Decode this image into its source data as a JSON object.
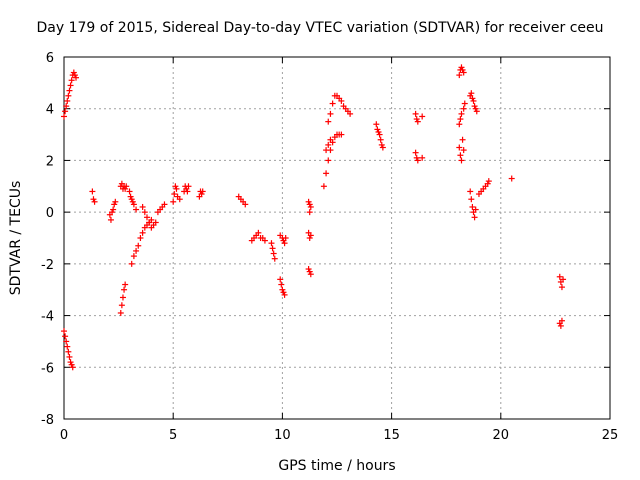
{
  "chart_data": {
    "type": "scatter",
    "title": "Day 179 of 2015, Sidereal Day-to-day VTEC variation (SDTVAR) for receiver ceeu",
    "xlabel": "GPS time / hours",
    "ylabel": "SDTVAR / TECUs",
    "xlim": [
      0,
      25
    ],
    "ylim": [
      -8,
      6
    ],
    "xticks": [
      0,
      5,
      10,
      15,
      20,
      25
    ],
    "yticks": [
      -8,
      -6,
      -4,
      -2,
      0,
      2,
      4,
      6
    ],
    "grid": true,
    "marker": "+",
    "marker_color": "#ff0000",
    "series": [
      {
        "name": "SDTVAR",
        "points": [
          [
            0.0,
            3.7
          ],
          [
            0.05,
            3.9
          ],
          [
            0.1,
            4.1
          ],
          [
            0.15,
            4.3
          ],
          [
            0.2,
            4.5
          ],
          [
            0.25,
            4.7
          ],
          [
            0.3,
            4.9
          ],
          [
            0.35,
            5.1
          ],
          [
            0.4,
            5.3
          ],
          [
            0.45,
            5.4
          ],
          [
            0.5,
            5.3
          ],
          [
            0.55,
            5.2
          ],
          [
            0.0,
            -4.6
          ],
          [
            0.05,
            -4.8
          ],
          [
            0.1,
            -5.0
          ],
          [
            0.15,
            -5.2
          ],
          [
            0.2,
            -5.4
          ],
          [
            0.25,
            -5.6
          ],
          [
            0.3,
            -5.8
          ],
          [
            0.35,
            -5.9
          ],
          [
            0.4,
            -6.0
          ],
          [
            1.3,
            0.8
          ],
          [
            1.35,
            0.5
          ],
          [
            1.4,
            0.4
          ],
          [
            2.1,
            -0.1
          ],
          [
            2.15,
            -0.3
          ],
          [
            2.2,
            0.0
          ],
          [
            2.25,
            0.1
          ],
          [
            2.3,
            0.3
          ],
          [
            2.35,
            0.4
          ],
          [
            2.6,
            1.0
          ],
          [
            2.65,
            1.1
          ],
          [
            2.7,
            0.9
          ],
          [
            2.75,
            1.0
          ],
          [
            2.8,
            0.9
          ],
          [
            2.85,
            1.0
          ],
          [
            2.6,
            -3.9
          ],
          [
            2.65,
            -3.6
          ],
          [
            2.7,
            -3.3
          ],
          [
            2.75,
            -3.0
          ],
          [
            2.8,
            -2.8
          ],
          [
            3.0,
            0.8
          ],
          [
            3.05,
            0.6
          ],
          [
            3.1,
            0.5
          ],
          [
            3.15,
            0.4
          ],
          [
            3.2,
            0.3
          ],
          [
            3.3,
            0.1
          ],
          [
            3.1,
            -2.0
          ],
          [
            3.2,
            -1.7
          ],
          [
            3.3,
            -1.5
          ],
          [
            3.4,
            -1.3
          ],
          [
            3.5,
            -1.0
          ],
          [
            3.6,
            -0.8
          ],
          [
            3.7,
            -0.6
          ],
          [
            3.8,
            -0.5
          ],
          [
            3.9,
            -0.4
          ],
          [
            4.0,
            -0.3
          ],
          [
            3.6,
            0.2
          ],
          [
            3.7,
            0.0
          ],
          [
            3.8,
            -0.2
          ],
          [
            3.9,
            -0.4
          ],
          [
            4.0,
            -0.6
          ],
          [
            4.1,
            -0.5
          ],
          [
            4.2,
            -0.4
          ],
          [
            4.3,
            0.0
          ],
          [
            4.4,
            0.1
          ],
          [
            4.5,
            0.2
          ],
          [
            4.6,
            0.3
          ],
          [
            5.0,
            0.4
          ],
          [
            5.05,
            0.7
          ],
          [
            5.1,
            1.0
          ],
          [
            5.15,
            0.9
          ],
          [
            5.2,
            0.6
          ],
          [
            5.3,
            0.5
          ],
          [
            5.5,
            0.8
          ],
          [
            5.55,
            1.0
          ],
          [
            5.6,
            0.9
          ],
          [
            5.65,
            0.8
          ],
          [
            5.7,
            1.0
          ],
          [
            6.2,
            0.6
          ],
          [
            6.25,
            0.8
          ],
          [
            6.3,
            0.7
          ],
          [
            6.35,
            0.8
          ],
          [
            8.0,
            0.6
          ],
          [
            8.1,
            0.5
          ],
          [
            8.2,
            0.4
          ],
          [
            8.3,
            0.3
          ],
          [
            8.6,
            -1.1
          ],
          [
            8.7,
            -1.0
          ],
          [
            8.8,
            -0.9
          ],
          [
            8.9,
            -0.8
          ],
          [
            9.0,
            -1.0
          ],
          [
            9.1,
            -1.0
          ],
          [
            9.2,
            -1.1
          ],
          [
            9.5,
            -1.2
          ],
          [
            9.55,
            -1.4
          ],
          [
            9.6,
            -1.6
          ],
          [
            9.65,
            -1.8
          ],
          [
            9.9,
            -0.9
          ],
          [
            10.0,
            -1.0
          ],
          [
            10.05,
            -1.1
          ],
          [
            10.1,
            -1.2
          ],
          [
            10.15,
            -1.0
          ],
          [
            9.9,
            -2.6
          ],
          [
            9.95,
            -2.8
          ],
          [
            10.0,
            -3.0
          ],
          [
            10.05,
            -3.1
          ],
          [
            10.1,
            -3.2
          ],
          [
            11.2,
            0.4
          ],
          [
            11.25,
            0.3
          ],
          [
            11.3,
            0.2
          ],
          [
            11.25,
            0.0
          ],
          [
            11.2,
            -0.8
          ],
          [
            11.25,
            -1.0
          ],
          [
            11.3,
            -0.9
          ],
          [
            11.2,
            -2.2
          ],
          [
            11.25,
            -2.3
          ],
          [
            11.3,
            -2.4
          ],
          [
            11.9,
            1.0
          ],
          [
            12.0,
            1.5
          ],
          [
            12.1,
            2.0
          ],
          [
            12.2,
            2.4
          ],
          [
            12.3,
            2.7
          ],
          [
            12.4,
            2.9
          ],
          [
            12.5,
            3.0
          ],
          [
            12.6,
            3.0
          ],
          [
            12.7,
            3.0
          ],
          [
            12.1,
            3.5
          ],
          [
            12.2,
            3.8
          ],
          [
            12.3,
            4.2
          ],
          [
            12.4,
            4.5
          ],
          [
            12.5,
            4.5
          ],
          [
            12.6,
            4.4
          ],
          [
            12.7,
            4.3
          ],
          [
            12.8,
            4.1
          ],
          [
            12.9,
            4.0
          ],
          [
            13.0,
            3.9
          ],
          [
            13.1,
            3.8
          ],
          [
            12.0,
            2.4
          ],
          [
            12.1,
            2.6
          ],
          [
            12.2,
            2.8
          ],
          [
            14.3,
            3.4
          ],
          [
            14.35,
            3.2
          ],
          [
            14.4,
            3.1
          ],
          [
            14.45,
            3.0
          ],
          [
            14.5,
            2.8
          ],
          [
            14.55,
            2.6
          ],
          [
            14.6,
            2.5
          ],
          [
            16.1,
            3.8
          ],
          [
            16.15,
            3.6
          ],
          [
            16.2,
            3.5
          ],
          [
            16.4,
            3.7
          ],
          [
            16.1,
            2.3
          ],
          [
            16.15,
            2.1
          ],
          [
            16.2,
            2.0
          ],
          [
            16.4,
            2.1
          ],
          [
            18.1,
            5.3
          ],
          [
            18.15,
            5.5
          ],
          [
            18.2,
            5.6
          ],
          [
            18.25,
            5.5
          ],
          [
            18.3,
            5.4
          ],
          [
            18.1,
            3.4
          ],
          [
            18.15,
            3.6
          ],
          [
            18.2,
            3.8
          ],
          [
            18.3,
            4.0
          ],
          [
            18.35,
            4.2
          ],
          [
            18.1,
            2.5
          ],
          [
            18.15,
            2.2
          ],
          [
            18.2,
            2.0
          ],
          [
            18.25,
            2.8
          ],
          [
            18.3,
            2.4
          ],
          [
            18.6,
            4.5
          ],
          [
            18.65,
            4.6
          ],
          [
            18.7,
            4.4
          ],
          [
            18.75,
            4.3
          ],
          [
            18.8,
            4.1
          ],
          [
            18.85,
            4.0
          ],
          [
            18.9,
            3.9
          ],
          [
            18.6,
            0.8
          ],
          [
            18.65,
            0.5
          ],
          [
            18.7,
            0.2
          ],
          [
            18.75,
            0.0
          ],
          [
            18.8,
            -0.2
          ],
          [
            18.85,
            0.1
          ],
          [
            19.0,
            0.7
          ],
          [
            19.1,
            0.8
          ],
          [
            19.2,
            0.9
          ],
          [
            19.3,
            1.0
          ],
          [
            19.4,
            1.1
          ],
          [
            19.45,
            1.2
          ],
          [
            20.5,
            1.3
          ],
          [
            22.7,
            -2.5
          ],
          [
            22.75,
            -2.7
          ],
          [
            22.8,
            -2.9
          ],
          [
            22.85,
            -2.6
          ],
          [
            22.7,
            -4.3
          ],
          [
            22.75,
            -4.4
          ],
          [
            22.8,
            -4.2
          ]
        ]
      }
    ]
  }
}
